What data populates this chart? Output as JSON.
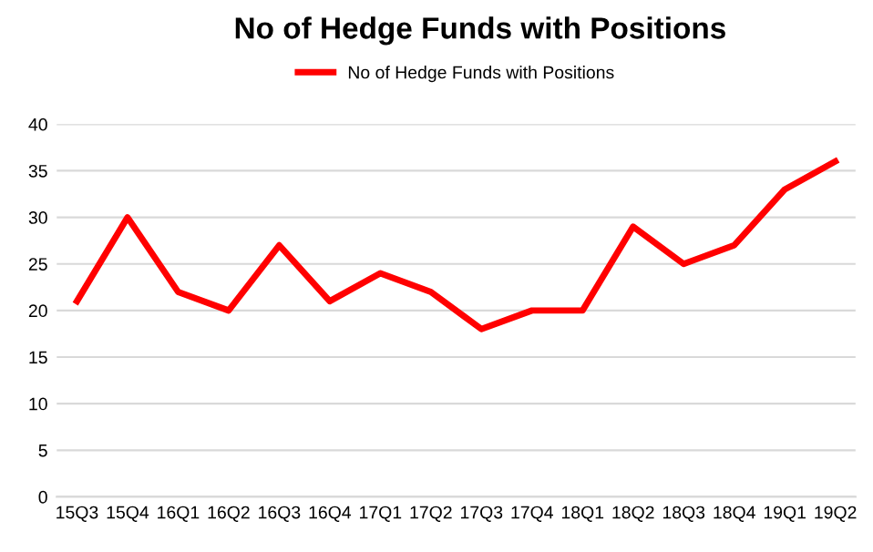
{
  "chart_data": {
    "type": "line",
    "title": "No of Hedge Funds with Positions",
    "categories": [
      "15Q3",
      "15Q4",
      "16Q1",
      "16Q2",
      "16Q3",
      "16Q4",
      "17Q1",
      "17Q2",
      "17Q3",
      "17Q4",
      "18Q1",
      "18Q2",
      "18Q3",
      "18Q4",
      "19Q1",
      "19Q2"
    ],
    "series": [
      {
        "name": "No of Hedge Funds with Positions",
        "color": "#ff0000",
        "values": [
          21,
          30,
          22,
          20,
          27,
          21,
          24,
          22,
          18,
          20,
          20,
          29,
          25,
          27,
          33,
          36
        ]
      }
    ],
    "ylim": [
      0,
      40
    ],
    "yticks": [
      0,
      5,
      10,
      15,
      20,
      25,
      30,
      35,
      40
    ],
    "grid": "y",
    "legend": "top",
    "marker": "none",
    "line_style": "solid"
  }
}
